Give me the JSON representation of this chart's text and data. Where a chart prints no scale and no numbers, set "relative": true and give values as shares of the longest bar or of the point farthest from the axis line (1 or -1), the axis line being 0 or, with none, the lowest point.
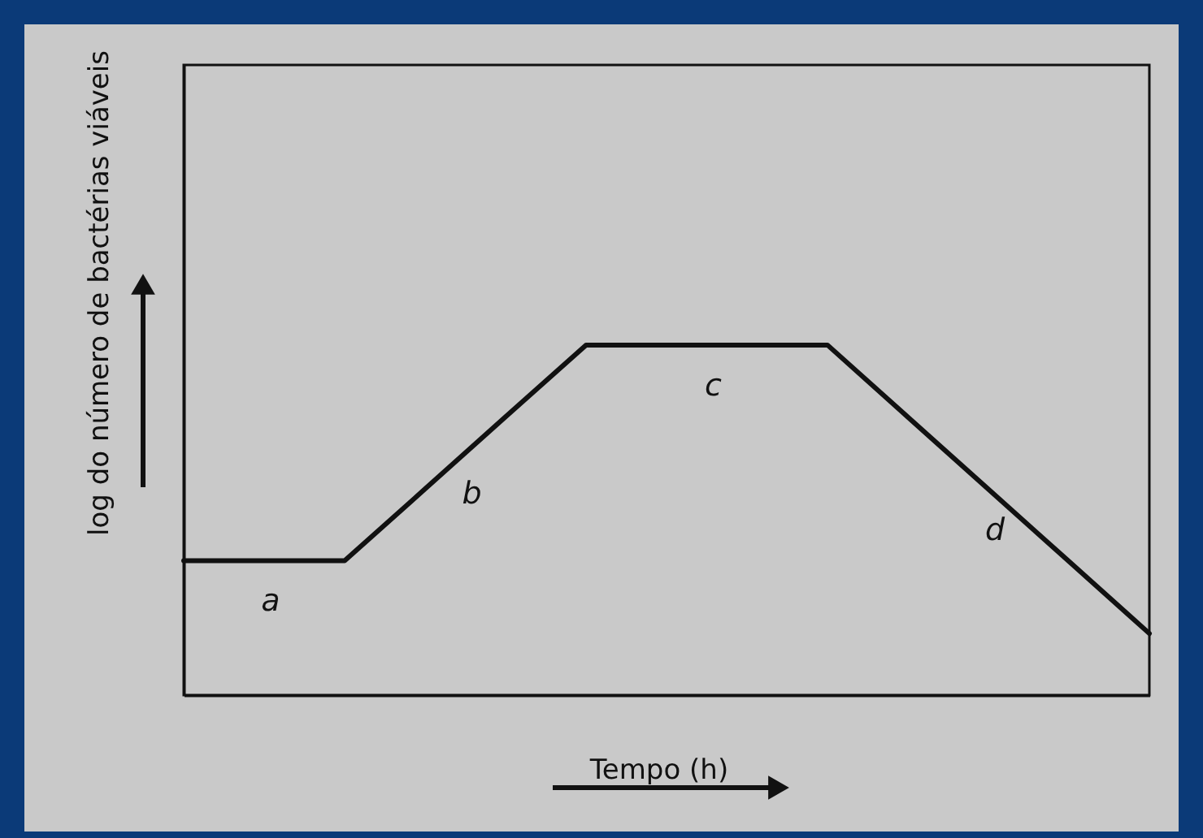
{
  "chart_data": {
    "type": "line",
    "xlabel": "Tempo (h)",
    "ylabel": "log do número de bactérias viáveis",
    "categories": [
      null,
      null,
      null,
      null,
      null,
      null,
      null,
      null,
      null,
      null,
      null,
      null,
      null
    ],
    "values": [
      0.384,
      0.384,
      0.384,
      0.589,
      0.795,
      1,
      1,
      1,
      1,
      0.794,
      0.588,
      0.382,
      0.176
    ],
    "color": "#111111",
    "relative": true,
    "annotations": [
      "a",
      "b",
      "c",
      "d"
    ]
  }
}
